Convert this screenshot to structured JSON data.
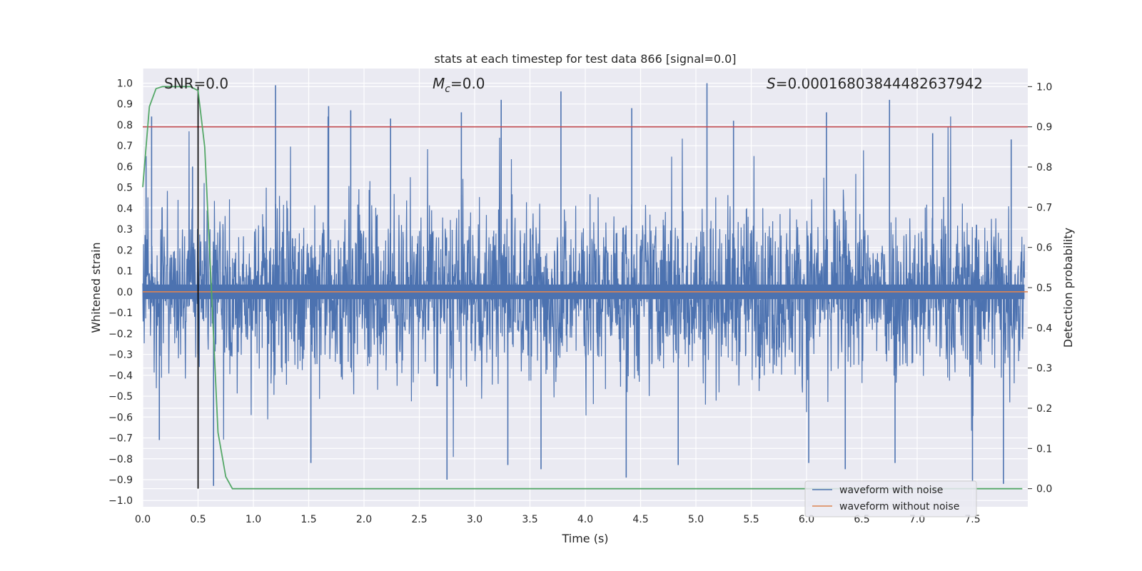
{
  "chart_data": {
    "type": "line",
    "title": "stats at each timestep for test data 866 [signal=0.0]",
    "xlabel": "Time (s)",
    "ylabel": "Whitened strain",
    "y2label": "Detection probability",
    "xlim": [
      0.0,
      8.0
    ],
    "ylim": [
      -1.03,
      1.07
    ],
    "y2lim": [
      -0.045,
      1.045
    ],
    "x_ticks": [
      "0.0",
      "0.5",
      "1.0",
      "1.5",
      "2.0",
      "2.5",
      "3.0",
      "3.5",
      "4.0",
      "4.5",
      "5.0",
      "5.5",
      "6.0",
      "6.5",
      "7.0",
      "7.5"
    ],
    "y_ticks": [
      "−1.0",
      "−0.9",
      "−0.8",
      "−0.7",
      "−0.6",
      "−0.5",
      "−0.4",
      "−0.3",
      "−0.2",
      "−0.1",
      "0.0",
      "0.1",
      "0.2",
      "0.3",
      "0.4",
      "0.5",
      "0.6",
      "0.7",
      "0.8",
      "0.9",
      "1.0"
    ],
    "y2_ticks": [
      "0.0",
      "0.1",
      "0.2",
      "0.3",
      "0.4",
      "0.5",
      "0.6",
      "0.7",
      "0.8",
      "0.9",
      "1.0"
    ],
    "grid": true,
    "legend_position": "lower right",
    "annotations": {
      "snr": "SNR=0.0",
      "mc": "M_c=0.0",
      "mc_base": "M",
      "mc_sub": "c",
      "mc_value": "=0.0",
      "s_symbol": "S",
      "s_value": "=0.00016803844482637942"
    },
    "threshold": {
      "value": 0.9,
      "axis": "right",
      "color": "#c44e52"
    },
    "marker_time": 0.5,
    "series": [
      {
        "name": "waveform with noise",
        "axis": "left",
        "color": "#4c72b0",
        "envelope_peaks_upper": [
          [
            0.03,
            0.65
          ],
          [
            0.08,
            0.84
          ],
          [
            0.45,
            0.6
          ],
          [
            1.2,
            0.99
          ],
          [
            1.68,
            0.89
          ],
          [
            1.88,
            0.87
          ],
          [
            2.24,
            0.83
          ],
          [
            2.88,
            0.86
          ],
          [
            3.24,
            0.92
          ],
          [
            3.78,
            0.96
          ],
          [
            4.42,
            0.88
          ],
          [
            5.1,
            1.0
          ],
          [
            5.34,
            0.82
          ],
          [
            6.18,
            0.86
          ],
          [
            6.75,
            0.92
          ],
          [
            7.14,
            0.76
          ],
          [
            7.85,
            0.73
          ]
        ],
        "envelope_peaks_lower": [
          [
            0.15,
            -0.71
          ],
          [
            0.64,
            -0.93
          ],
          [
            1.52,
            -0.82
          ],
          [
            2.75,
            -0.9
          ],
          [
            3.3,
            -0.83
          ],
          [
            3.6,
            -0.85
          ],
          [
            4.37,
            -0.89
          ],
          [
            4.84,
            -0.83
          ],
          [
            6.02,
            -0.82
          ],
          [
            6.35,
            -0.85
          ],
          [
            6.8,
            -0.82
          ],
          [
            7.5,
            -0.91
          ],
          [
            7.78,
            -0.92
          ]
        ]
      },
      {
        "name": "waveform without noise",
        "axis": "left",
        "color": "#dd8452",
        "x": [
          0.0,
          8.0
        ],
        "y": [
          0.0,
          0.0
        ]
      },
      {
        "name": "detection probability",
        "axis": "right",
        "color": "#55a868",
        "x": [
          0.0,
          0.06,
          0.12,
          0.18,
          0.25,
          0.31,
          0.37,
          0.43,
          0.5,
          0.56,
          0.62,
          0.68,
          0.75,
          0.81,
          1.0,
          2.0,
          3.0,
          4.0,
          5.0,
          6.0,
          7.0,
          7.95
        ],
        "y": [
          0.75,
          0.95,
          0.995,
          1.0,
          1.0,
          1.0,
          1.0,
          1.0,
          0.99,
          0.85,
          0.5,
          0.14,
          0.03,
          0.0,
          0.0,
          0.0,
          0.0,
          0.0,
          0.0,
          0.0,
          0.0,
          0.0
        ]
      }
    ]
  }
}
